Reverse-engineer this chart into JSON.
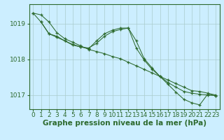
{
  "background_color": "#cceeff",
  "grid_color": "#aacccc",
  "line_color": "#2d6a2d",
  "xlabel": "Graphe pression niveau de la mer (hPa)",
  "xlabel_fontsize": 7.5,
  "xlim": [
    -0.5,
    23.5
  ],
  "ylim": [
    1016.6,
    1019.55
  ],
  "yticks": [
    1017,
    1018,
    1019
  ],
  "xticks": [
    0,
    1,
    2,
    3,
    4,
    5,
    6,
    7,
    8,
    9,
    10,
    11,
    12,
    13,
    14,
    15,
    16,
    17,
    18,
    19,
    20,
    21,
    22,
    23
  ],
  "tick_fontsize": 6.5,
  "series1_x": [
    0,
    1,
    2,
    3,
    4,
    5,
    6,
    7,
    8,
    9,
    10,
    11,
    12,
    13,
    14,
    15,
    16,
    17,
    18,
    19,
    20,
    21,
    22,
    23
  ],
  "series1_y": [
    1019.3,
    1019.25,
    1019.05,
    1018.75,
    1018.58,
    1018.48,
    1018.38,
    1018.28,
    1018.22,
    1018.16,
    1018.08,
    1018.02,
    1017.92,
    1017.82,
    1017.72,
    1017.62,
    1017.52,
    1017.42,
    1017.32,
    1017.22,
    1017.12,
    1017.1,
    1017.05,
    1017.0
  ],
  "series2_x": [
    0,
    1,
    2,
    3,
    4,
    5,
    6,
    7,
    8,
    9,
    10,
    11,
    12,
    13,
    14,
    15,
    16,
    17,
    18,
    19,
    20,
    21,
    22,
    23
  ],
  "series2_y": [
    1019.3,
    1019.05,
    1018.72,
    1018.65,
    1018.52,
    1018.4,
    1018.35,
    1018.3,
    1018.52,
    1018.72,
    1018.82,
    1018.88,
    1018.88,
    1018.32,
    1017.98,
    1017.72,
    1017.52,
    1017.35,
    1017.22,
    1017.1,
    1017.05,
    1017.02,
    1017.0,
    1016.98
  ],
  "series3_x": [
    1,
    2,
    3,
    4,
    5,
    6,
    7,
    8,
    9,
    10,
    11,
    12,
    13,
    14,
    15,
    16,
    17,
    18,
    19,
    20,
    21,
    22,
    23
  ],
  "series3_y": [
    1019.05,
    1018.72,
    1018.62,
    1018.52,
    1018.42,
    1018.35,
    1018.32,
    1018.45,
    1018.65,
    1018.78,
    1018.84,
    1018.88,
    1018.52,
    1018.02,
    1017.76,
    1017.52,
    1017.3,
    1017.08,
    1016.88,
    1016.78,
    1016.72,
    1017.02,
    1016.98
  ]
}
